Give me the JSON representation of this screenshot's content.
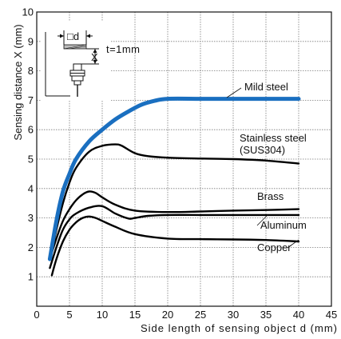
{
  "chart_data": {
    "type": "line",
    "title": "",
    "xlabel": "Side length of sensing object d (mm)",
    "ylabel": "Sensing distance X (mm)",
    "xlim": [
      0,
      45
    ],
    "ylim": [
      0,
      10
    ],
    "xticks": [
      0,
      5,
      10,
      15,
      20,
      25,
      30,
      35,
      40,
      45
    ],
    "yticks": [
      1,
      2,
      3,
      4,
      5,
      6,
      7,
      8,
      9,
      10
    ],
    "grid": true,
    "series": [
      {
        "name": "Mild steel",
        "color": "#1a6fc0",
        "x": [
          2,
          3,
          4,
          5,
          6,
          8,
          10,
          12,
          14,
          16,
          18,
          20,
          25,
          30,
          35,
          40
        ],
        "y": [
          1.6,
          2.9,
          3.9,
          4.5,
          5.0,
          5.6,
          6.0,
          6.35,
          6.62,
          6.85,
          6.98,
          7.05,
          7.05,
          7.05,
          7.05,
          7.05
        ]
      },
      {
        "name": "Stainless steel (SUS304)",
        "label_lines": [
          "Stainless steel",
          "(SUS304)"
        ],
        "color": "#000000",
        "x": [
          2,
          3,
          4,
          5,
          6,
          8,
          10,
          12,
          13,
          15,
          17,
          20,
          25,
          30,
          35,
          40
        ],
        "y": [
          1.6,
          2.6,
          3.5,
          4.2,
          4.7,
          5.25,
          5.45,
          5.5,
          5.45,
          5.2,
          5.1,
          5.05,
          5.02,
          5.0,
          4.95,
          4.85
        ]
      },
      {
        "name": "Brass",
        "color": "#000000",
        "x": [
          2,
          3,
          4,
          5,
          6,
          7,
          8,
          9,
          10,
          12,
          15,
          20,
          25,
          30,
          35,
          40
        ],
        "y": [
          1.6,
          2.3,
          2.9,
          3.3,
          3.6,
          3.8,
          3.9,
          3.85,
          3.7,
          3.45,
          3.25,
          3.2,
          3.22,
          3.25,
          3.27,
          3.3
        ]
      },
      {
        "name": "Aluminum",
        "color": "#000000",
        "x": [
          2,
          3,
          4,
          5,
          6,
          8,
          10,
          12,
          14,
          15,
          17,
          20,
          25,
          30,
          35,
          40
        ],
        "y": [
          1.3,
          2.0,
          2.6,
          2.95,
          3.15,
          3.35,
          3.4,
          3.15,
          2.98,
          3.0,
          3.07,
          3.1,
          3.1,
          3.1,
          3.1,
          3.1
        ]
      },
      {
        "name": "Copper",
        "color": "#000000",
        "x": [
          2.3,
          3,
          4,
          5,
          6,
          7,
          8,
          9,
          10,
          12,
          15,
          20,
          25,
          30,
          35,
          40
        ],
        "y": [
          1.05,
          1.6,
          2.2,
          2.6,
          2.85,
          3.0,
          3.05,
          3.0,
          2.9,
          2.7,
          2.45,
          2.3,
          2.28,
          2.27,
          2.25,
          2.2
        ]
      }
    ],
    "inset": {
      "side_label": "□d",
      "gap_label": "X",
      "thickness_label": "t=1mm"
    }
  }
}
